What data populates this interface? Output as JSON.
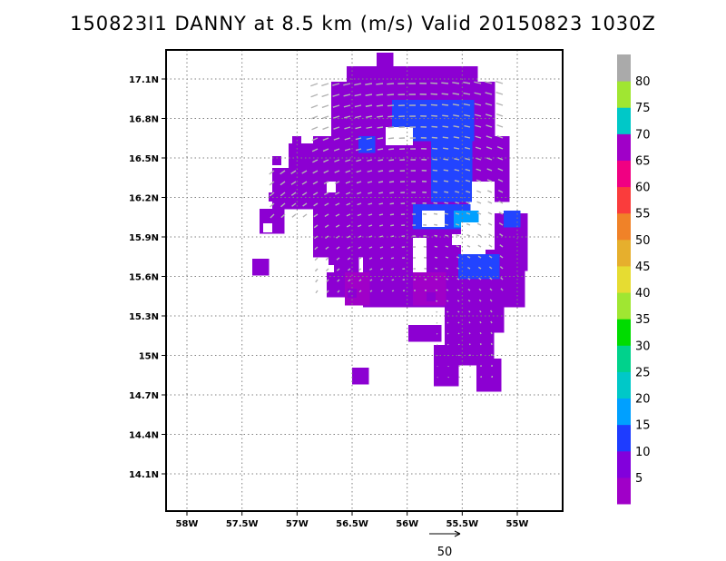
{
  "title": "150823I1 DANNY at 8.5 km (m/s) Valid 20150823 1030Z",
  "chart_data": {
    "type": "heatmap",
    "title": "150823I1 DANNY at 8.5 km (m/s) Valid 20150823 1030Z",
    "units": "m/s",
    "xlim_lon": [
      -58.2,
      -54.5
    ],
    "ylim_lat": [
      13.7,
      17.3
    ],
    "x_ticks": [
      "58W",
      "57.5W",
      "57W",
      "56.5W",
      "56W",
      "55.5W",
      "55W"
    ],
    "x_tick_values": [
      -58,
      -57.5,
      -57,
      -56.5,
      -56,
      -55.5,
      -55
    ],
    "y_ticks": [
      "17.1N",
      "16.8N",
      "16.5N",
      "16.2N",
      "15.9N",
      "15.6N",
      "15.3N",
      "15N",
      "14.7N",
      "14.4N",
      "14.1N"
    ],
    "y_tick_values": [
      17.1,
      16.8,
      16.5,
      16.2,
      15.9,
      15.6,
      15.3,
      15.0,
      14.7,
      14.4,
      14.1
    ],
    "grid": true,
    "colorbar": {
      "labels": [
        "5",
        "10",
        "15",
        "20",
        "25",
        "30",
        "35",
        "40",
        "45",
        "50",
        "55",
        "60",
        "65",
        "70",
        "75",
        "80"
      ],
      "colors": [
        "#a000c8",
        "#8200dc",
        "#1e3cff",
        "#00a0ff",
        "#00c8c8",
        "#00d28c",
        "#00dc00",
        "#a0e632",
        "#e6dc32",
        "#e6af2d",
        "#f08228",
        "#fa3c3c",
        "#f00082",
        "#a000c8",
        "#00c8c8",
        "#a0e632",
        "#aaaaaa"
      ]
    },
    "reference_vector": {
      "label": "50",
      "value": 50
    },
    "wind_speed_range_shown": [
      5,
      15
    ],
    "dominant_color_class": "5-10 m/s (purple)",
    "secondary_color_class": "10-20 m/s (blue)"
  }
}
